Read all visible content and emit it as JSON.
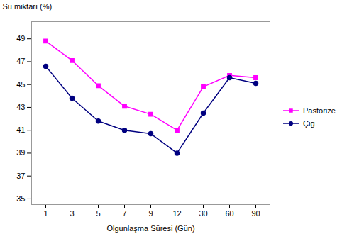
{
  "chart_data": {
    "type": "line",
    "xlabel": "Olgunlaşma Süresi (Gün)",
    "ylabel": "Su miktarı (%)",
    "categories": [
      "1",
      "3",
      "5",
      "7",
      "9",
      "12",
      "30",
      "60",
      "90"
    ],
    "series": [
      {
        "name": "Pastörize",
        "color": "#FF00FF",
        "marker": "square",
        "values": [
          48.8,
          47.1,
          44.9,
          43.1,
          42.4,
          41.0,
          44.8,
          45.8,
          45.6
        ]
      },
      {
        "name": "Çiğ",
        "color": "#000080",
        "marker": "circle",
        "values": [
          46.6,
          43.8,
          41.8,
          41.0,
          40.7,
          39.0,
          42.5,
          45.6,
          45.1
        ]
      }
    ],
    "ylim": [
      34.5,
      50.5
    ],
    "yticks": [
      35,
      37,
      39,
      41,
      43,
      45,
      47,
      49
    ],
    "grid": false,
    "legend": "right"
  }
}
